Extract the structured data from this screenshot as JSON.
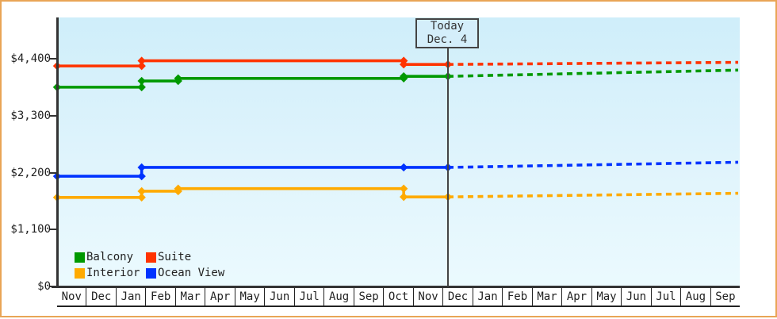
{
  "frame": {
    "border_color": "#e9a556",
    "background": "#ffffff"
  },
  "chart_data": {
    "type": "line",
    "description": "Cabin price history by category; solid lines are past prices, dotted lines are forecast after today",
    "grid": false,
    "legend_position": "bottom-left inside plot",
    "background_gradient": [
      "#cfeefa",
      "#ebfafe"
    ],
    "axis_color": "#333333",
    "text_color": "#222222",
    "today": {
      "line1": "Today",
      "line2": "Dec. 4",
      "month_pos": 13.17
    },
    "x_end_pos": 22.95,
    "ylim": [
      0,
      5200
    ],
    "y_ticks": [
      {
        "label": "$0",
        "value": 0
      },
      {
        "label": "$1,100",
        "value": 1100
      },
      {
        "label": "$2,200",
        "value": 2200
      },
      {
        "label": "$3,300",
        "value": 3300
      },
      {
        "label": "$4,400",
        "value": 4400
      }
    ],
    "x_months": [
      "Nov",
      "Dec",
      "Jan",
      "Feb",
      "Mar",
      "Apr",
      "May",
      "Jun",
      "Jul",
      "Aug",
      "Sep",
      "Oct",
      "Nov",
      "Dec",
      "Jan",
      "Feb",
      "Mar",
      "Apr",
      "May",
      "Jun",
      "Jul",
      "Aug",
      "Sep"
    ],
    "series": [
      {
        "name": "Balcony",
        "color": "#009900",
        "solid_points": [
          [
            0,
            3850
          ],
          [
            2.85,
            3850
          ],
          [
            2.85,
            3970
          ],
          [
            4.08,
            3970
          ],
          [
            4.08,
            4020
          ],
          [
            11.68,
            4020
          ],
          [
            11.68,
            4060
          ],
          [
            13.17,
            4060
          ]
        ],
        "forecast_points": [
          [
            13.17,
            4060
          ],
          [
            22.95,
            4180
          ]
        ]
      },
      {
        "name": "Suite",
        "color": "#ff3300",
        "solid_points": [
          [
            0,
            4260
          ],
          [
            2.85,
            4260
          ],
          [
            2.85,
            4360
          ],
          [
            11.68,
            4360
          ],
          [
            11.68,
            4290
          ],
          [
            13.17,
            4290
          ]
        ],
        "forecast_points": [
          [
            13.17,
            4290
          ],
          [
            22.95,
            4330
          ]
        ]
      },
      {
        "name": "Interior",
        "color": "#ffaa00",
        "solid_points": [
          [
            0,
            1720
          ],
          [
            2.85,
            1720
          ],
          [
            2.85,
            1840
          ],
          [
            4.08,
            1840
          ],
          [
            4.08,
            1890
          ],
          [
            11.68,
            1890
          ],
          [
            11.68,
            1730
          ],
          [
            13.17,
            1730
          ]
        ],
        "forecast_points": [
          [
            13.17,
            1730
          ],
          [
            22.95,
            1800
          ]
        ]
      },
      {
        "name": "Ocean View",
        "color": "#0033ff",
        "solid_points": [
          [
            0,
            2130
          ],
          [
            2.85,
            2130
          ],
          [
            2.85,
            2300
          ],
          [
            11.68,
            2300
          ],
          [
            13.17,
            2300
          ]
        ],
        "forecast_points": [
          [
            13.17,
            2300
          ],
          [
            22.95,
            2400
          ]
        ]
      }
    ],
    "legend": [
      "Balcony",
      "Suite",
      "Interior",
      "Ocean View"
    ]
  }
}
